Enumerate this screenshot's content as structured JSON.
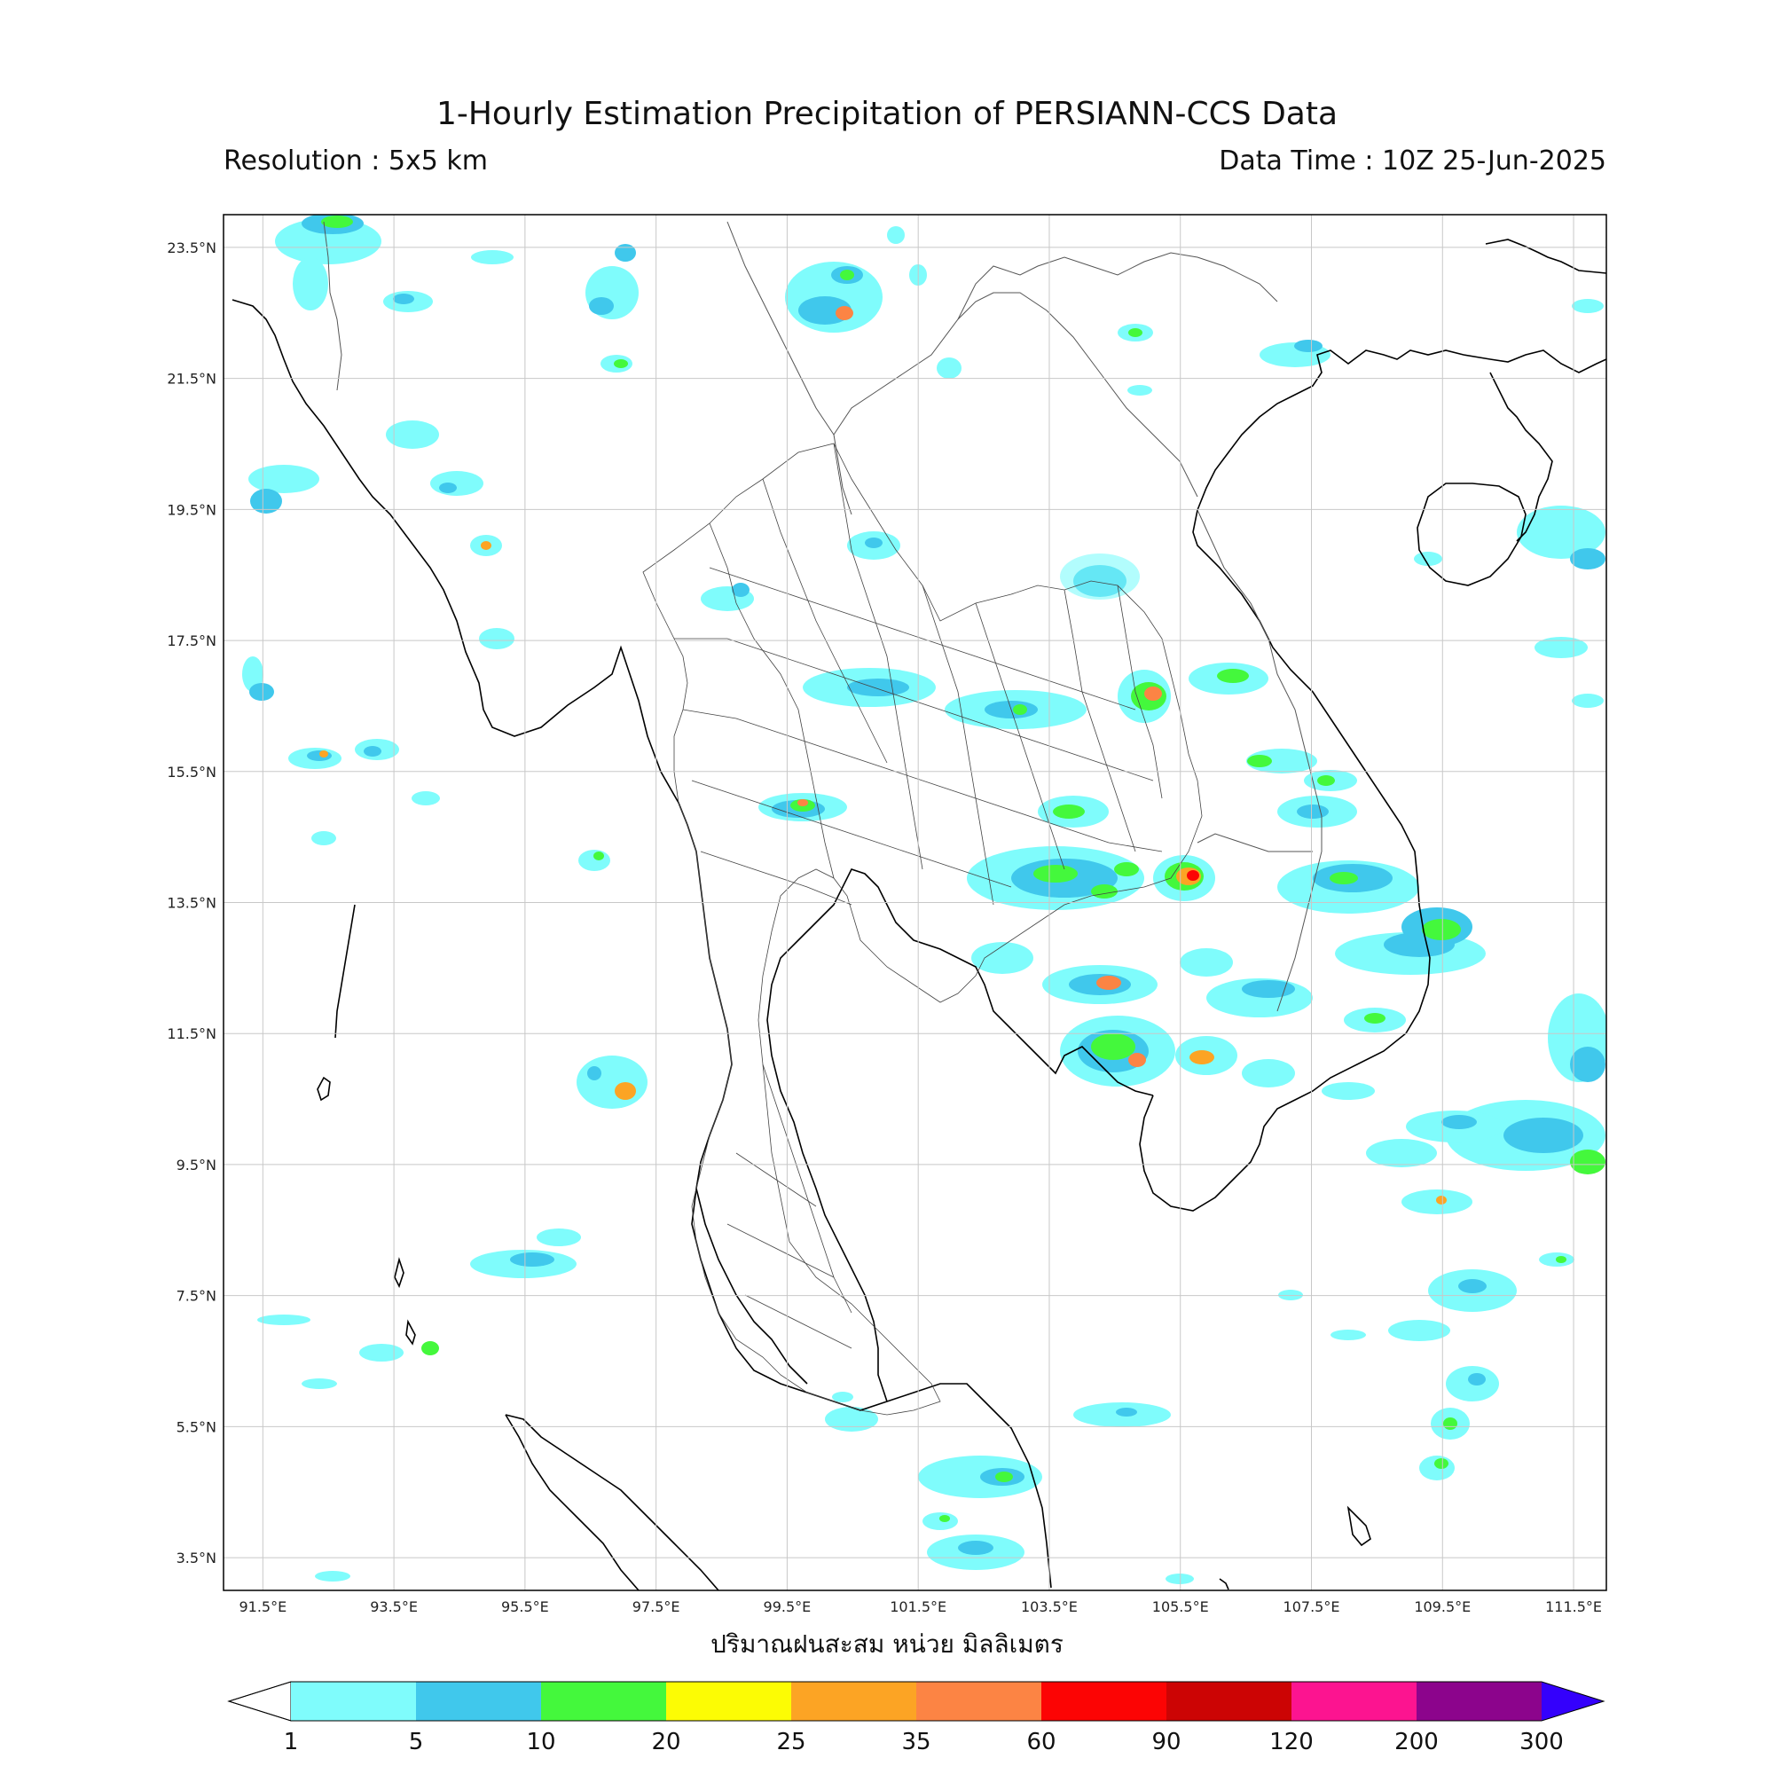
{
  "header": {
    "title": "1-Hourly Estimation Precipitation of PERSIANN-CCS Data",
    "resolution": "Resolution : 5x5 km",
    "data_time": "Data Time : 10Z 25-Jun-2025"
  },
  "map": {
    "lat_labels": [
      "23.5°N",
      "21.5°N",
      "19.5°N",
      "17.5°N",
      "15.5°N",
      "13.5°N",
      "11.5°N",
      "9.5°N",
      "7.5°N",
      "5.5°N",
      "3.5°N"
    ],
    "lon_labels": [
      "91.5°E",
      "93.5°E",
      "95.5°E",
      "97.5°E",
      "99.5°E",
      "101.5°E",
      "103.5°E",
      "105.5°E",
      "107.5°E",
      "109.5°E",
      "111.5°E"
    ],
    "xlabel": "ปริมาณฝนสะสม หน่วย มิลลิเมตร",
    "lat_range": [
      3.0,
      24.0
    ],
    "lon_range": [
      90.9,
      112.0
    ]
  },
  "colorbar": {
    "ticks": [
      "1",
      "5",
      "10",
      "20",
      "25",
      "35",
      "60",
      "90",
      "120",
      "200",
      "300"
    ],
    "colors": [
      "#7ffcfc",
      "#40c8ec",
      "#44f83c",
      "#fcfc04",
      "#fca424",
      "#fc8444",
      "#fc0404",
      "#cc0404",
      "#fc1490",
      "#8c048c"
    ],
    "under_color": "#ffffff",
    "over_color": "#3400fc"
  }
}
